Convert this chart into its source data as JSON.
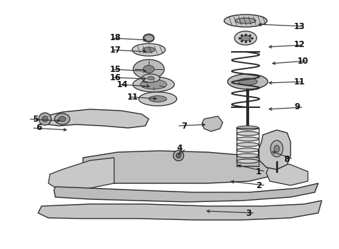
{
  "bg_color": "#ffffff",
  "line_color": "#2a2a2a",
  "fig_width": 4.9,
  "fig_height": 3.6,
  "dpi": 100,
  "label_configs": [
    [
      "1",
      370,
      248,
      340,
      238,
      "left"
    ],
    [
      "2",
      370,
      268,
      330,
      262,
      "left"
    ],
    [
      "3",
      355,
      308,
      295,
      305,
      "left"
    ],
    [
      "4",
      255,
      215,
      255,
      225,
      "left"
    ],
    [
      "5",
      55,
      172,
      90,
      175,
      "right"
    ],
    [
      "6",
      60,
      185,
      100,
      188,
      "right"
    ],
    [
      "7",
      270,
      182,
      300,
      180,
      "right"
    ],
    [
      "8",
      410,
      230,
      390,
      218,
      "left"
    ],
    [
      "9",
      425,
      155,
      385,
      158,
      "left"
    ],
    [
      "10",
      430,
      88,
      390,
      92,
      "left"
    ],
    [
      "11",
      200,
      140,
      230,
      143,
      "right"
    ],
    [
      "11",
      425,
      118,
      385,
      120,
      "left"
    ],
    [
      "12",
      425,
      65,
      385,
      68,
      "left"
    ],
    [
      "13",
      425,
      38,
      370,
      35,
      "left"
    ],
    [
      "14",
      185,
      122,
      220,
      125,
      "right"
    ],
    [
      "15",
      175,
      100,
      215,
      103,
      "right"
    ],
    [
      "16",
      175,
      112,
      215,
      114,
      "right"
    ],
    [
      "17",
      175,
      72,
      215,
      75,
      "right"
    ],
    [
      "18",
      175,
      55,
      215,
      58,
      "right"
    ]
  ]
}
